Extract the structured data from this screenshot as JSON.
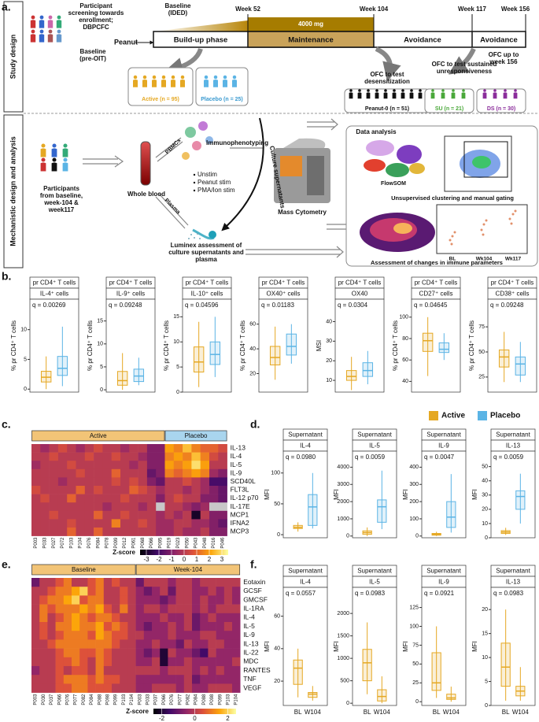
{
  "panel_labels": [
    "a.",
    "b.",
    "c.",
    "d.",
    "e.",
    "f."
  ],
  "study_design": {
    "side_label": "Study design",
    "screening": [
      "Participant",
      "screening towards",
      "enrollment;",
      "DBPCFC"
    ],
    "baseline_pre": [
      "Baseline",
      "(pre-OIT)"
    ],
    "baseline_ided": [
      "Baseline",
      "(IDED)"
    ],
    "weeks": [
      "Week 52",
      "Week 104",
      "Week 117",
      "Week 156"
    ],
    "peanut": "Peanut",
    "dose": "4000 mg",
    "phases": [
      "Build-up phase",
      "Maintenance",
      "Avoidance",
      "Avoidance"
    ],
    "ofc_156": [
      "OFC up to",
      "week 156"
    ],
    "active": "Active (n = 95)",
    "placebo": "Placebo (n = 25)",
    "ofc_desens": [
      "OFC to test",
      "desensitization"
    ],
    "peanut0": "Peanut-0 (n = 51)",
    "ofc_su": [
      "OFC to test sustained",
      "unresponsiveness"
    ],
    "su": "SU (n = 21)",
    "ds": "DS (n = 30)"
  },
  "mechanistic": {
    "side_label": "Mechanistic design and analysis",
    "participants": [
      "Participants",
      "from baseline,",
      "week-104 &",
      "week117"
    ],
    "whole_blood": "Whole blood",
    "pbmcs": "PBMCs",
    "plasma": "Plasma",
    "stims": [
      "Unstim",
      "Peanut stim",
      "PMA/Ion stim"
    ],
    "immuno": "Immunophenotyping",
    "culture_sup": "Culture supernatants",
    "mass_cyt": "Mass Cytometry",
    "luminex": [
      "Luminex assessment of",
      "culture supernatants and",
      "plasma"
    ],
    "data_analysis": "Data analysis",
    "flowsom": "FlowSOM",
    "clustering": "Unsupervised clustering and manual gating",
    "timepoints": [
      "BL",
      "Wk104",
      "Wk117"
    ],
    "assessment": "Assessment of changes in immune parameters"
  },
  "panel_b": {
    "box_colors": [
      "#e5a823",
      "#5bb4e5"
    ],
    "plots": [
      {
        "header": "pr CD4⁺ T cells",
        "label": "IL-4⁺ cells",
        "q": "q = 0.00269",
        "ylabel": "% pr CD4⁺ T cells",
        "ylim": [
          -0.5,
          13
        ],
        "yticks": [
          0,
          5,
          10
        ],
        "boxes": [
          [
            0,
            1.2,
            2,
            3,
            5.5
          ],
          [
            0.5,
            2.3,
            3.5,
            5.5,
            10.5
          ]
        ]
      },
      {
        "header": "pr CD4⁺ T cells",
        "label": "IL-9⁺ cells",
        "q": "q = 0.09248",
        "ylabel": "% pr CD4⁺ T cells",
        "ylim": [
          -0.5,
          17
        ],
        "yticks": [
          0,
          5,
          10,
          15
        ],
        "boxes": [
          [
            0,
            1,
            2,
            4,
            8
          ],
          [
            1,
            1.8,
            3,
            4.5,
            7
          ]
        ]
      },
      {
        "header": "pr CD4⁺ T cells",
        "label": "IL-10⁺ cells",
        "q": "q = 0.04596",
        "ylabel": "% pr CD4⁺ T cells",
        "ylim": [
          0,
          16
        ],
        "yticks": [
          0,
          5,
          10,
          15
        ],
        "boxes": [
          [
            1,
            4,
            6,
            9,
            14
          ],
          [
            3,
            5.5,
            7.5,
            10,
            15
          ]
        ]
      },
      {
        "header": "pr CD4⁺ T cells",
        "label": "OX40⁺ cells",
        "q": "q = 0.01183",
        "ylabel": "% pr CD4⁺ T cells",
        "ylim": [
          5,
          70
        ],
        "yticks": [
          20,
          40,
          60
        ],
        "boxes": [
          [
            15,
            27,
            33,
            42,
            58
          ],
          [
            28,
            35,
            42,
            52,
            60
          ]
        ]
      },
      {
        "header": "pr CD4⁺ T cells",
        "label": "OX40",
        "q": "q = 0.0304",
        "ylabel": "MSI",
        "ylim": [
          4,
          45
        ],
        "yticks": [
          10,
          20,
          30,
          40
        ],
        "boxes": [
          [
            5,
            10,
            12,
            15,
            22
          ],
          [
            8,
            12,
            15,
            19,
            25
          ]
        ]
      },
      {
        "header": "pr CD4⁺ T cells",
        "label": "CD27⁺ cells",
        "q": "q = 0.04645",
        "ylabel": "% pr CD4⁺ T cells",
        "ylim": [
          30,
          105
        ],
        "yticks": [
          40,
          60,
          80,
          100
        ],
        "boxes": [
          [
            45,
            68,
            78,
            85,
            100
          ],
          [
            60,
            67,
            70,
            76,
            85
          ]
        ]
      },
      {
        "header": "pr CD4⁺ T cells",
        "label": "CD38⁺ cells",
        "q": "q = 0.09248",
        "ylabel": "% pr CD4⁺ T cells",
        "ylim": [
          10,
          90
        ],
        "yticks": [
          25,
          50,
          75
        ],
        "boxes": [
          [
            20,
            35,
            45,
            52,
            70
          ],
          [
            20,
            27,
            38,
            45,
            60
          ]
        ]
      }
    ]
  },
  "legend": [
    {
      "name": "Active",
      "color": "#e5a823"
    },
    {
      "name": "Placebo",
      "color": "#5bb4e5"
    }
  ],
  "panel_c": {
    "groups": [
      {
        "label": "Active",
        "color": "#f2c477",
        "columns": [
          "P003",
          "P033",
          "P027",
          "P072",
          "P103",
          "P104",
          "P076",
          "P084",
          "P078",
          "P099",
          "P012",
          "P061",
          "P068",
          "P066",
          "P095"
        ]
      },
      {
        "label": "Placebo",
        "color": "#a9d5ee",
        "columns": [
          "P019",
          "P023",
          "P050",
          "P043",
          "P048",
          "P016",
          "P046"
        ]
      }
    ],
    "rows": [
      "IL-13",
      "IL-4",
      "IL-5",
      "IL-9",
      "SCD40L",
      "FLT3L",
      "IL-12 p70",
      "IL-17E",
      "MCP1",
      "IFNA2",
      "MCP3"
    ],
    "values": [
      [
        0,
        -0.5,
        0,
        0.5,
        0,
        -0.5,
        0,
        0.5,
        0,
        0,
        -0.5,
        0,
        0,
        -1,
        -1,
        2,
        1.5,
        2.5,
        1.5,
        1,
        1,
        0.5
      ],
      [
        0,
        0,
        0.5,
        0,
        0,
        0,
        0.5,
        0,
        0,
        0.5,
        0,
        0,
        -0.5,
        -1,
        -1,
        1.5,
        2,
        1.5,
        2.5,
        1.5,
        0.5,
        0
      ],
      [
        -0.5,
        0,
        0,
        0,
        0.5,
        0,
        0,
        0,
        0,
        0,
        0,
        -0.5,
        0,
        -1,
        -1,
        2,
        1.5,
        2,
        3,
        2,
        0,
        0
      ],
      [
        0,
        0,
        0,
        0,
        0,
        0.5,
        0,
        0,
        0,
        1,
        0,
        0,
        0,
        -1.5,
        -1,
        1.5,
        1,
        1.5,
        2,
        1.5,
        -0.5,
        -1
      ],
      [
        0,
        0,
        0,
        -0.5,
        0,
        0,
        0,
        0,
        0,
        0.5,
        0,
        0.5,
        0,
        -1,
        -1.5,
        0,
        0,
        0.5,
        0,
        -0.5,
        -2,
        -2
      ],
      [
        0.5,
        0,
        0,
        0,
        0,
        1,
        0,
        0.5,
        0,
        0,
        0,
        1,
        0.5,
        0,
        -0.5,
        0,
        0,
        -0.5,
        0,
        -0.5,
        -1,
        -1.5
      ],
      [
        0,
        0.5,
        0,
        0,
        1,
        0,
        0,
        0,
        0,
        0,
        0.5,
        0,
        0,
        0,
        -1,
        0,
        0.5,
        0,
        0,
        -1,
        -1,
        -1.5
      ],
      [
        0,
        0,
        0,
        0,
        0,
        0,
        0,
        0,
        -0.5,
        0,
        0,
        0,
        -0.5,
        0,
        null,
        0,
        0,
        -0.5,
        -1,
        -0.5,
        null,
        null
      ],
      [
        0,
        0,
        0.5,
        0,
        0,
        0,
        0,
        1,
        0,
        0,
        0.5,
        0,
        0,
        0,
        -0.5,
        0,
        -0.5,
        0,
        -3,
        0,
        -1,
        -1
      ],
      [
        0,
        0,
        0,
        0,
        0.5,
        0,
        0,
        0,
        0,
        1.5,
        0,
        0,
        0.5,
        0,
        -0.5,
        -0.5,
        0,
        0,
        -0.5,
        -0.5,
        -1,
        -1.5
      ],
      [
        0,
        0,
        0,
        0,
        1,
        0,
        0,
        1,
        0,
        0,
        0,
        0,
        0,
        0,
        -0.5,
        -0.5,
        0,
        -0.5,
        -0.5,
        0,
        -1,
        -1
      ]
    ],
    "colorbar_label": "Z-score",
    "zlim": [
      -3.5,
      3.5
    ],
    "colorbar_ticks": [
      -3,
      -2,
      -1,
      0,
      1,
      2,
      3
    ]
  },
  "panel_d": {
    "box_colors": [
      "#e5a823",
      "#5bb4e5"
    ],
    "plots": [
      {
        "header": "Supernatant",
        "label": "IL-4",
        "q": "q = 0.0980",
        "ylabel": "MFI",
        "ylim": [
          -5,
          115
        ],
        "yticks": [
          0,
          50,
          100
        ],
        "boxes": [
          [
            5,
            10,
            12,
            15,
            20
          ],
          [
            10,
            15,
            45,
            65,
            100
          ]
        ]
      },
      {
        "header": "Supernatant",
        "label": "IL-5",
        "q": "q = 0.0059",
        "ylabel": "MFI",
        "ylim": [
          -100,
          4200
        ],
        "yticks": [
          0,
          1000,
          2000,
          3000,
          4000
        ],
        "boxes": [
          [
            0,
            100,
            200,
            300,
            500
          ],
          [
            400,
            800,
            1700,
            2100,
            3800
          ]
        ]
      },
      {
        "header": "Supernatant",
        "label": "IL-9",
        "q": "q = 0.0047",
        "ylabel": "MFI",
        "ylim": [
          -10,
          420
        ],
        "yticks": [
          0,
          100,
          200,
          300,
          400
        ],
        "boxes": [
          [
            0,
            5,
            10,
            15,
            25
          ],
          [
            20,
            50,
            110,
            200,
            360
          ]
        ]
      },
      {
        "header": "Supernatant",
        "label": "IL-13",
        "q": "q = 0.0059",
        "ylabel": "MFI",
        "ylim": [
          0,
          52
        ],
        "yticks": [
          0,
          10,
          20,
          30,
          40,
          50
        ],
        "boxes": [
          [
            2,
            3,
            4,
            5,
            7
          ],
          [
            10,
            20,
            29,
            33,
            45
          ]
        ]
      }
    ]
  },
  "panel_e": {
    "groups": [
      {
        "label": "Baseline",
        "color": "#f2c477",
        "columns": [
          "P003",
          "P030",
          "P037",
          "P066",
          "P076",
          "P077",
          "P082",
          "P084",
          "P088",
          "P098",
          "P099",
          "P103",
          "P104"
        ]
      },
      {
        "label": "Week-104",
        "color": "#f2c477",
        "columns": [
          "P003",
          "P033",
          "P037",
          "P066",
          "P076",
          "P077",
          "P082",
          "P084",
          "P088",
          "P098",
          "P099",
          "P103",
          "P104"
        ]
      }
    ],
    "rows": [
      "Eotaxin",
      "GCSF",
      "GMCSF",
      "IL-1RA",
      "IL-4",
      "IL-5",
      "IL-9",
      "IL-13",
      "IL-22",
      "MDC",
      "RANTES",
      "TNF",
      "VEGF"
    ],
    "values": [
      [
        -1,
        0,
        0,
        0.5,
        1,
        0,
        0,
        0.5,
        1,
        0,
        0.5,
        0,
        0,
        -1,
        0,
        0,
        0,
        -0.5,
        0,
        0,
        -0.5,
        0,
        0,
        0,
        0,
        0
      ],
      [
        0,
        0,
        0.5,
        1,
        1,
        1.5,
        2,
        0.5,
        1,
        0,
        0,
        0.5,
        0,
        -0.5,
        -1,
        -0.5,
        0,
        -1,
        0,
        0,
        -0.5,
        -0.5,
        0,
        -0.5,
        0,
        -0.5
      ],
      [
        0,
        0.5,
        1,
        1,
        1.5,
        2,
        0.5,
        1,
        1,
        0,
        0,
        0.5,
        0,
        -0.5,
        -0.5,
        -0.5,
        -1,
        -0.5,
        0,
        0,
        -0.5,
        0,
        -0.5,
        -0.5,
        0,
        -0.5
      ],
      [
        0,
        1,
        0.5,
        1,
        1,
        1,
        1.5,
        1,
        1.5,
        0.5,
        0,
        1,
        0,
        -0.5,
        0,
        0,
        -0.5,
        0,
        0,
        0,
        -0.5,
        0,
        -0.5,
        0,
        0,
        0
      ],
      [
        0,
        1,
        0,
        0.5,
        1,
        1.5,
        1,
        0.5,
        1,
        1,
        0.5,
        0,
        0,
        -0.5,
        -0.5,
        -0.5,
        0,
        -0.5,
        -0.5,
        0,
        -1,
        -0.5,
        0,
        -0.5,
        -0.5,
        -0.5
      ],
      [
        0,
        0.5,
        0,
        1,
        1,
        1.5,
        1,
        1,
        1.5,
        0.5,
        1,
        0.5,
        0,
        -0.5,
        -1,
        -0.5,
        -0.5,
        0,
        -0.5,
        0,
        -1,
        -0.5,
        -0.5,
        -0.5,
        0,
        -0.5
      ],
      [
        0,
        0.5,
        0,
        0.5,
        1,
        1,
        1,
        0.5,
        1.5,
        1,
        0.5,
        0.5,
        0,
        0,
        -0.5,
        -0.5,
        -0.5,
        0,
        -0.5,
        -0.5,
        -0.5,
        0,
        0,
        -0.5,
        -0.5,
        -0.5
      ],
      [
        0,
        0,
        0.5,
        1,
        1,
        1,
        1,
        1,
        1,
        1,
        0.5,
        0,
        0,
        -0.5,
        -0.5,
        0,
        -0.5,
        -0.5,
        -1,
        0,
        -0.5,
        -0.5,
        0,
        0,
        -0.5,
        -0.5
      ],
      [
        0,
        0,
        0,
        0.5,
        1,
        1,
        0.5,
        0.5,
        1,
        0.5,
        0,
        0,
        0,
        -0.5,
        -1,
        -0.5,
        -2,
        0,
        -0.5,
        -0.5,
        -1,
        -1.5,
        0,
        -0.5,
        -0.5,
        -0.5
      ],
      [
        0,
        0,
        0,
        0.5,
        0.5,
        1,
        0.5,
        0,
        1,
        0.5,
        0,
        0,
        0,
        -0.5,
        -0.5,
        0,
        -2,
        -0.5,
        -0.5,
        0,
        -0.5,
        -0.5,
        -0.5,
        -0.5,
        -0.5,
        0
      ],
      [
        -0.5,
        0,
        0,
        0.5,
        0,
        0.5,
        0.5,
        0,
        1,
        0,
        0,
        0,
        0,
        0,
        0,
        0,
        -0.5,
        0,
        0,
        0,
        -0.5,
        0,
        -0.5,
        0,
        -0.5,
        -0.5
      ],
      [
        0,
        0,
        0,
        0.5,
        1,
        1,
        1,
        0.5,
        1,
        0.5,
        0.5,
        0,
        0,
        -0.5,
        -0.5,
        -0.5,
        -0.5,
        -0.5,
        -0.5,
        0,
        -1,
        -0.5,
        -0.5,
        -0.5,
        -0.5,
        -0.5
      ],
      [
        0,
        0,
        0,
        0.5,
        0.5,
        1,
        1,
        0.5,
        0.5,
        0.5,
        0,
        0,
        0,
        -0.5,
        -0.5,
        0,
        0,
        0,
        -0.5,
        0,
        -0.5,
        -0.5,
        0,
        0,
        0,
        -0.5
      ]
    ],
    "colorbar_label": "Z-score",
    "zlim": [
      -2.5,
      2.5
    ],
    "colorbar_ticks": [
      -2,
      0,
      2
    ]
  },
  "panel_f": {
    "box_colors": [
      "#e5a823",
      "#e5a823"
    ],
    "plots": [
      {
        "header": "Supernatant",
        "label": "IL-4",
        "q": "q = 0.0557",
        "ylabel": "MFI",
        "categories": [
          "BL",
          "W104"
        ],
        "ylim": [
          5,
          70
        ],
        "yticks": [
          20,
          40,
          60
        ],
        "boxes": [
          [
            10,
            18,
            28,
            33,
            40
          ],
          [
            8,
            10,
            12,
            13,
            17
          ]
        ]
      },
      {
        "header": "Supernatant",
        "label": "IL-5",
        "q": "q = 0.0983",
        "ylabel": "MFI",
        "categories": [
          "BL",
          "W104"
        ],
        "ylim": [
          -50,
          2300
        ],
        "yticks": [
          0,
          500,
          1000,
          1500,
          2000
        ],
        "boxes": [
          [
            200,
            500,
            900,
            1200,
            1800
          ],
          [
            0,
            50,
            150,
            300,
            600
          ]
        ]
      },
      {
        "header": "Supernatant",
        "label": "IL-9",
        "q": "q = 0.0921",
        "ylabel": "MFI",
        "categories": [
          "BL",
          "W104"
        ],
        "ylim": [
          -5,
          135
        ],
        "yticks": [
          0,
          25,
          50,
          75,
          100,
          125
        ],
        "boxes": [
          [
            5,
            15,
            25,
            65,
            100
          ],
          [
            0,
            3,
            5,
            10,
            20
          ]
        ]
      },
      {
        "header": "Supernatant",
        "label": "IL-13",
        "q": "q = 0.0983",
        "ylabel": "MFI",
        "categories": [
          "BL",
          "W104"
        ],
        "ylim": [
          0,
          22
        ],
        "yticks": [
          0,
          5,
          10,
          15,
          20
        ],
        "boxes": [
          [
            1,
            4,
            8,
            13,
            20
          ],
          [
            1,
            2,
            3,
            4,
            8
          ]
        ]
      }
    ]
  }
}
